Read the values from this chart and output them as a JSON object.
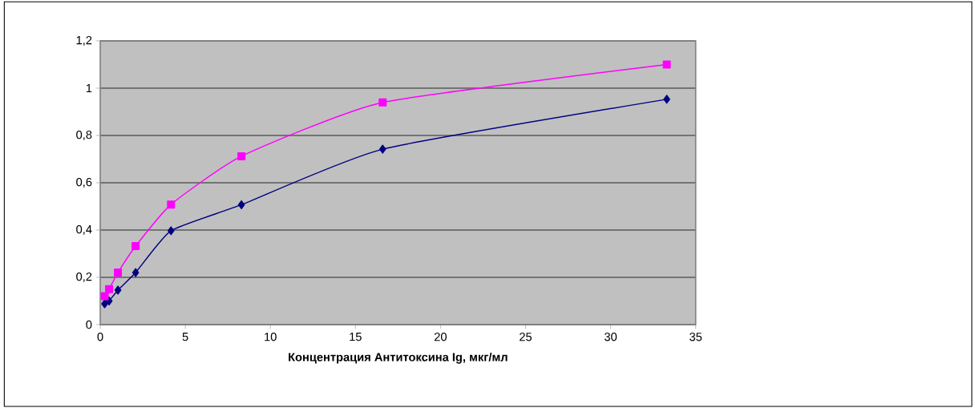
{
  "chart_data": {
    "type": "line",
    "xlabel": "**Концентрация Антитоксина Ig, мкг/мл**",
    "x": [
      0.26,
      0.52,
      1.04,
      2.08,
      4.16,
      8.3,
      16.6,
      33.3
    ],
    "series": [
      {
        "color": "#000080",
        "marker": "diamond",
        "values": [
          0.088,
          0.1,
          0.146,
          0.22,
          0.397,
          0.507,
          0.742,
          0.953
        ]
      },
      {
        "color": "#ff00ff",
        "marker": "square",
        "values": [
          0.12,
          0.15,
          0.22,
          0.332,
          0.508,
          0.712,
          0.94,
          1.1
        ]
      }
    ],
    "xlim": [
      0,
      35
    ],
    "xticks": [
      0,
      5,
      10,
      15,
      20,
      25,
      30,
      35
    ],
    "ylim": [
      0,
      1.2
    ],
    "yticks": [
      0,
      {
        "value": 0.2,
        "label": "0,2"
      },
      {
        "value": 0.4,
        "label": "0,4"
      },
      {
        "value": 0.6,
        "label": "0,6"
      },
      {
        "value": 0.8,
        "label": "0,8"
      },
      1,
      {
        "value": 1.2,
        "label": "1,2"
      }
    ],
    "grid": "y"
  }
}
